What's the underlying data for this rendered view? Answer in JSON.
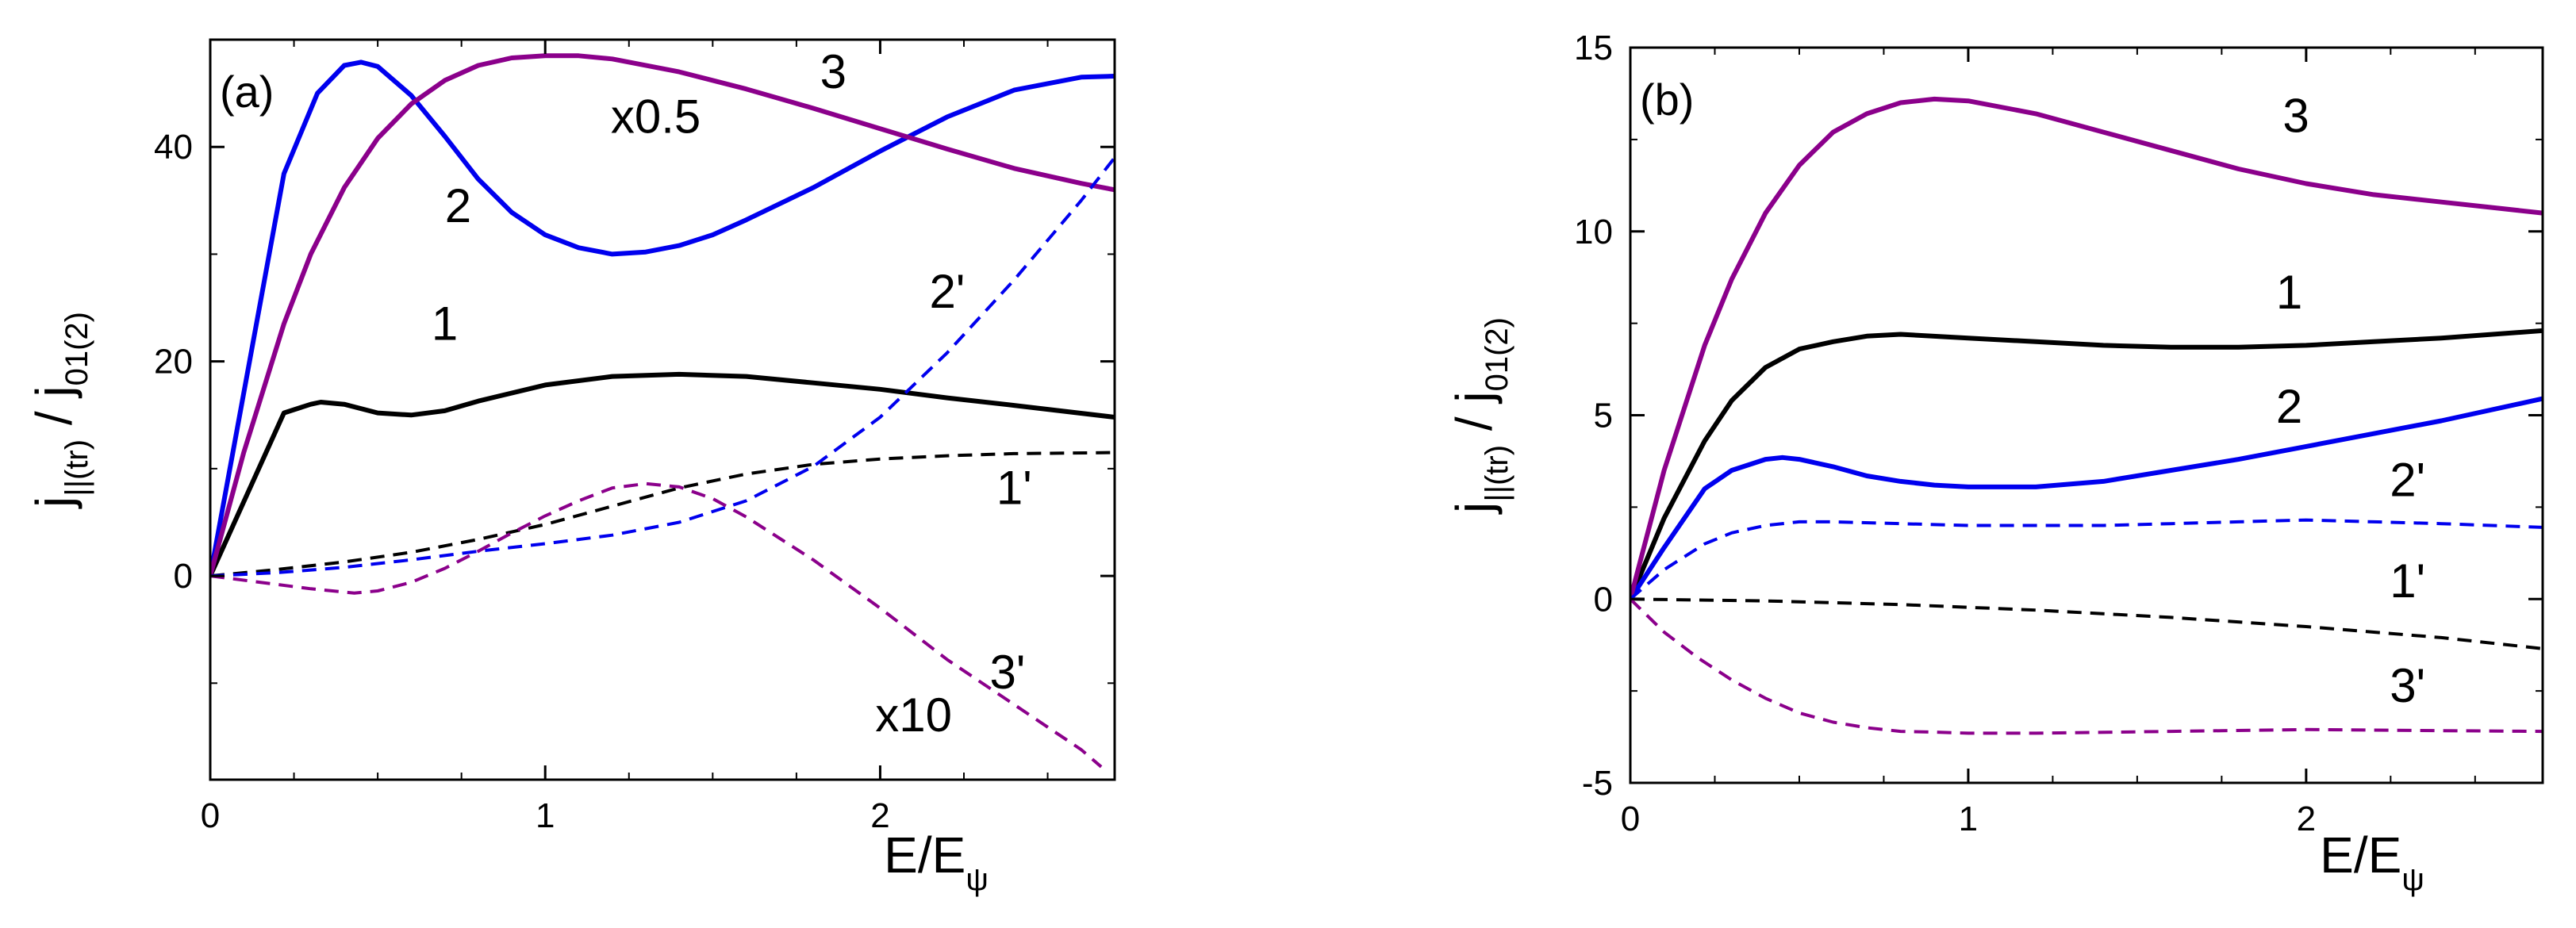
{
  "chart_data": [
    {
      "type": "line",
      "panel_label": "(a)",
      "xlabel": "E/E",
      "xlabel_sub": "ψ",
      "ylabel": "j",
      "ylabel_sub": "||(tr)",
      "ylabel_sep": " / j",
      "ylabel_sub2": "01(2)",
      "xlim": [
        0,
        2.7
      ],
      "ylim": [
        -19,
        50
      ],
      "x_ticks": [
        0,
        1,
        2
      ],
      "x_tick_labels": [
        "0",
        "1",
        "2"
      ],
      "y_ticks": [
        0,
        20,
        40
      ],
      "y_tick_labels": [
        "0",
        "20",
        "40"
      ],
      "annotations": [
        {
          "text": "x0.5",
          "x": 1.33,
          "y": 41.3
        },
        {
          "text": "x10",
          "x": 2.1,
          "y": -14.5
        }
      ],
      "series": [
        {
          "name": "1",
          "color": "#000000",
          "dashed": false,
          "x": [
            0,
            0.22,
            0.3,
            0.33,
            0.4,
            0.5,
            0.6,
            0.7,
            0.8,
            1.0,
            1.2,
            1.4,
            1.6,
            1.8,
            2.0,
            2.2,
            2.4,
            2.7
          ],
          "y": [
            0,
            15.2,
            16.0,
            16.2,
            16.0,
            15.2,
            15.0,
            15.4,
            16.3,
            17.8,
            18.6,
            18.8,
            18.6,
            18.0,
            17.4,
            16.6,
            15.9,
            14.8
          ]
        },
        {
          "name": "2",
          "color": "#0000ee",
          "dashed": false,
          "x": [
            0,
            0.22,
            0.32,
            0.4,
            0.45,
            0.5,
            0.6,
            0.7,
            0.8,
            0.9,
            1.0,
            1.1,
            1.2,
            1.3,
            1.4,
            1.5,
            1.6,
            1.8,
            2.0,
            2.2,
            2.4,
            2.6,
            2.7
          ],
          "y": [
            0,
            37.5,
            45.0,
            47.6,
            47.9,
            47.5,
            44.8,
            41.0,
            37.0,
            33.9,
            31.8,
            30.6,
            30.0,
            30.2,
            30.8,
            31.8,
            33.2,
            36.2,
            39.6,
            42.8,
            45.3,
            46.5,
            46.6
          ]
        },
        {
          "name": "3",
          "color": "#8b008b",
          "dashed": false,
          "x": [
            0,
            0.1,
            0.22,
            0.3,
            0.4,
            0.5,
            0.6,
            0.7,
            0.8,
            0.9,
            1.0,
            1.1,
            1.2,
            1.4,
            1.6,
            1.8,
            2.0,
            2.2,
            2.4,
            2.6,
            2.7
          ],
          "y": [
            0,
            11.5,
            23.5,
            30.0,
            36.2,
            40.8,
            44.0,
            46.2,
            47.6,
            48.3,
            48.5,
            48.5,
            48.2,
            47.0,
            45.4,
            43.6,
            41.7,
            39.8,
            38.0,
            36.6,
            36.0
          ]
        },
        {
          "name": "1'",
          "color": "#000000",
          "dashed": true,
          "x": [
            0,
            0.2,
            0.4,
            0.6,
            0.8,
            1.0,
            1.2,
            1.4,
            1.6,
            1.8,
            2.0,
            2.2,
            2.4,
            2.7
          ],
          "y": [
            0,
            0.6,
            1.3,
            2.2,
            3.4,
            4.8,
            6.5,
            8.2,
            9.5,
            10.4,
            10.9,
            11.2,
            11.4,
            11.5
          ]
        },
        {
          "name": "2'",
          "color": "#0000ee",
          "dashed": true,
          "x": [
            0,
            0.2,
            0.4,
            0.6,
            0.8,
            1.0,
            1.2,
            1.4,
            1.6,
            1.8,
            2.0,
            2.2,
            2.4,
            2.6,
            2.7
          ],
          "y": [
            0,
            0.3,
            0.8,
            1.5,
            2.3,
            3.0,
            3.8,
            5.0,
            7.0,
            10.2,
            14.8,
            20.8,
            27.6,
            35.0,
            39.0
          ]
        },
        {
          "name": "3'",
          "color": "#8b008b",
          "dashed": true,
          "x": [
            0,
            0.2,
            0.3,
            0.43,
            0.5,
            0.6,
            0.7,
            0.8,
            0.9,
            1.0,
            1.1,
            1.2,
            1.3,
            1.4,
            1.5,
            1.6,
            1.8,
            2.0,
            2.2,
            2.4,
            2.6,
            2.66
          ],
          "y": [
            0,
            -0.8,
            -1.2,
            -1.6,
            -1.4,
            -0.6,
            0.7,
            2.3,
            4.0,
            5.6,
            7.0,
            8.2,
            8.6,
            8.3,
            7.2,
            5.5,
            1.5,
            -3.0,
            -7.8,
            -12.0,
            -16.2,
            -17.8
          ]
        }
      ],
      "curve_labels": [
        {
          "text": "1",
          "x": 0.7,
          "y": 22.0
        },
        {
          "text": "2",
          "x": 0.74,
          "y": 33.0
        },
        {
          "text": "3",
          "x": 1.86,
          "y": 45.5
        },
        {
          "text": "2'",
          "x": 2.2,
          "y": 25.0
        },
        {
          "text": "1'",
          "x": 2.4,
          "y": 6.7
        },
        {
          "text": "3'",
          "x": 2.38,
          "y": -10.5
        }
      ]
    },
    {
      "type": "line",
      "panel_label": "(b)",
      "xlabel": "E/E",
      "xlabel_sub": "ψ",
      "ylabel": "j",
      "ylabel_sub": "||(tr)",
      "ylabel_sep": " / j",
      "ylabel_sub2": "01(2)",
      "xlim": [
        0,
        2.7
      ],
      "ylim": [
        -5,
        15
      ],
      "x_ticks": [
        0,
        1,
        2
      ],
      "x_tick_labels": [
        "0",
        "1",
        "2"
      ],
      "y_ticks": [
        -5,
        0,
        5,
        10,
        15
      ],
      "y_tick_labels": [
        "-5",
        "0",
        "5",
        "10",
        "15"
      ],
      "annotations": [],
      "series": [
        {
          "name": "1",
          "color": "#000000",
          "dashed": false,
          "x": [
            0,
            0.1,
            0.22,
            0.3,
            0.4,
            0.5,
            0.6,
            0.7,
            0.8,
            1.0,
            1.2,
            1.4,
            1.6,
            1.8,
            2.0,
            2.2,
            2.4,
            2.7
          ],
          "y": [
            0,
            2.2,
            4.3,
            5.4,
            6.3,
            6.8,
            7.0,
            7.15,
            7.2,
            7.1,
            7.0,
            6.9,
            6.85,
            6.85,
            6.9,
            7.0,
            7.1,
            7.3
          ]
        },
        {
          "name": "2",
          "color": "#0000ee",
          "dashed": false,
          "x": [
            0,
            0.1,
            0.22,
            0.3,
            0.4,
            0.45,
            0.5,
            0.6,
            0.7,
            0.8,
            0.9,
            1.0,
            1.1,
            1.2,
            1.4,
            1.6,
            1.8,
            2.0,
            2.2,
            2.4,
            2.7
          ],
          "y": [
            0,
            1.4,
            3.0,
            3.5,
            3.8,
            3.85,
            3.8,
            3.6,
            3.35,
            3.2,
            3.1,
            3.05,
            3.05,
            3.05,
            3.2,
            3.5,
            3.8,
            4.15,
            4.5,
            4.85,
            5.45
          ]
        },
        {
          "name": "3",
          "color": "#8b008b",
          "dashed": false,
          "x": [
            0,
            0.1,
            0.22,
            0.3,
            0.4,
            0.5,
            0.6,
            0.7,
            0.8,
            0.9,
            1.0,
            1.2,
            1.4,
            1.6,
            1.8,
            2.0,
            2.2,
            2.4,
            2.7
          ],
          "y": [
            0,
            3.5,
            6.9,
            8.7,
            10.5,
            11.8,
            12.7,
            13.2,
            13.5,
            13.6,
            13.55,
            13.2,
            12.7,
            12.2,
            11.7,
            11.3,
            11.0,
            10.8,
            10.5
          ]
        },
        {
          "name": "1'",
          "color": "#000000",
          "dashed": true,
          "x": [
            0,
            0.4,
            0.8,
            1.2,
            1.6,
            2.0,
            2.4,
            2.7
          ],
          "y": [
            0,
            -0.05,
            -0.15,
            -0.3,
            -0.5,
            -0.75,
            -1.05,
            -1.35
          ]
        },
        {
          "name": "2'",
          "color": "#0000ee",
          "dashed": true,
          "x": [
            0,
            0.1,
            0.22,
            0.3,
            0.4,
            0.5,
            0.6,
            0.8,
            1.0,
            1.2,
            1.4,
            1.6,
            1.8,
            2.0,
            2.2,
            2.4,
            2.7
          ],
          "y": [
            0,
            0.8,
            1.5,
            1.8,
            2.0,
            2.1,
            2.1,
            2.05,
            2.0,
            2.0,
            2.0,
            2.05,
            2.1,
            2.15,
            2.1,
            2.05,
            1.95
          ]
        },
        {
          "name": "3'",
          "color": "#8b008b",
          "dashed": true,
          "x": [
            0,
            0.1,
            0.2,
            0.3,
            0.4,
            0.5,
            0.6,
            0.7,
            0.8,
            0.9,
            1.0,
            1.2,
            1.6,
            2.0,
            2.4,
            2.7
          ],
          "y": [
            0,
            -0.9,
            -1.6,
            -2.2,
            -2.7,
            -3.1,
            -3.35,
            -3.5,
            -3.6,
            -3.62,
            -3.65,
            -3.65,
            -3.6,
            -3.55,
            -3.58,
            -3.6
          ]
        }
      ],
      "curve_labels": [
        {
          "text": "3",
          "x": 1.97,
          "y": 12.7
        },
        {
          "text": "1",
          "x": 1.95,
          "y": 7.9
        },
        {
          "text": "2",
          "x": 1.95,
          "y": 4.8
        },
        {
          "text": "2'",
          "x": 2.3,
          "y": 2.8
        },
        {
          "text": "1'",
          "x": 2.3,
          "y": 0.05
        },
        {
          "text": "3'",
          "x": 2.3,
          "y": -2.8
        }
      ]
    }
  ]
}
